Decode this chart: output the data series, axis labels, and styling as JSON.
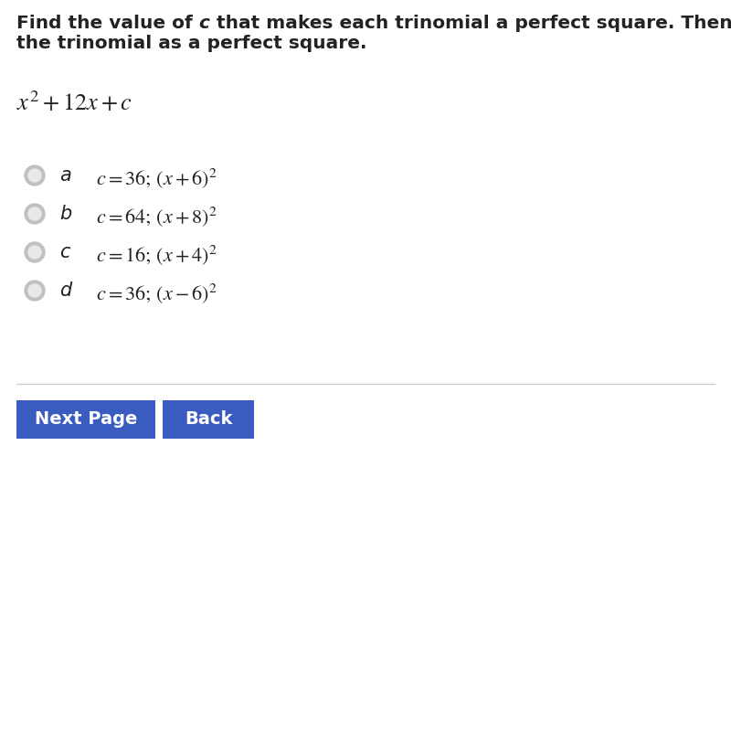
{
  "title_line1_pre": "Find the value of ",
  "title_c": "c",
  "title_line1_post": " that makes each trinomial a perfect square. Then write",
  "title_line2": "the trinomial as a perfect square.",
  "button1_text": "Next Page",
  "button2_text": "Back",
  "bg_color": "#ffffff",
  "text_color": "#222222",
  "button_color": "#3a5bbf",
  "button_text_color": "#ffffff",
  "circle_outer_color": "#c0c0c0",
  "circle_inner_color": "#e8e8e8",
  "line_color": "#cccccc",
  "title_fontsize": 14.5,
  "equation_fontsize": 19,
  "choice_fontsize": 16,
  "label_fontsize": 15,
  "button_fontsize": 14,
  "choice_labels": [
    "a",
    "b",
    "c",
    "d"
  ],
  "choice_math": [
    "c = 36;\\,(x + 6)^2",
    "c = 64;\\,(x + 8)^2",
    "c = 16;\\,(x + 4)^2",
    "c = 36;\\,(x - 6)^2"
  ]
}
